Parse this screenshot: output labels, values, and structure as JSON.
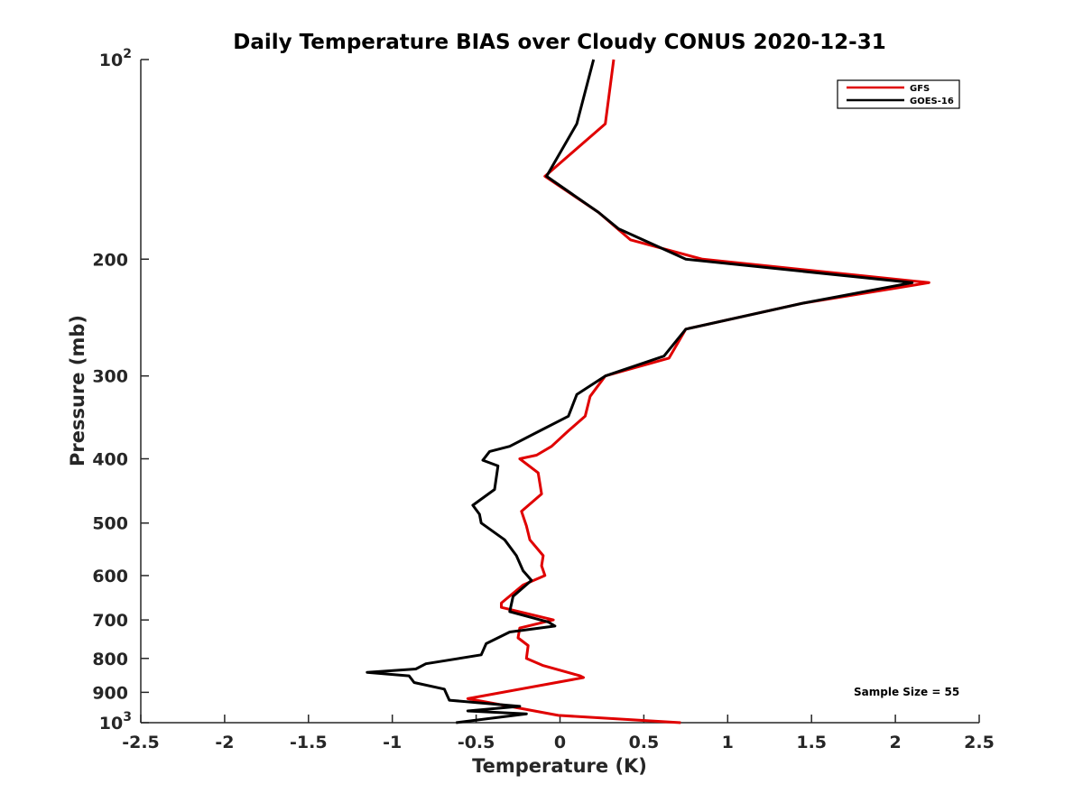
{
  "chart_data": {
    "type": "line",
    "title": "Daily Temperature BIAS over Cloudy CONUS 2020-12-31",
    "xlabel": "Temperature (K)",
    "ylabel": "Pressure (mb)",
    "xlim": [
      -2.5,
      2.5
    ],
    "ylim": [
      100,
      1000
    ],
    "y_scale": "log",
    "y_reversed": true,
    "grid": false,
    "x_ticks": [
      {
        "value": -2.5,
        "label": "-2.5"
      },
      {
        "value": -2,
        "label": "-2"
      },
      {
        "value": -1.5,
        "label": "-1.5"
      },
      {
        "value": -1,
        "label": "-1"
      },
      {
        "value": -0.5,
        "label": "-0.5"
      },
      {
        "value": 0,
        "label": "0"
      },
      {
        "value": 0.5,
        "label": "0.5"
      },
      {
        "value": 1,
        "label": "1"
      },
      {
        "value": 1.5,
        "label": "1.5"
      },
      {
        "value": 2,
        "label": "2"
      },
      {
        "value": 2.5,
        "label": "2.5"
      }
    ],
    "y_ticks": [
      {
        "value": 100,
        "base": "10",
        "exp": "2"
      },
      {
        "value": 200,
        "label": "200"
      },
      {
        "value": 300,
        "label": "300"
      },
      {
        "value": 400,
        "label": "400"
      },
      {
        "value": 500,
        "label": "500"
      },
      {
        "value": 600,
        "label": "600"
      },
      {
        "value": 700,
        "label": "700"
      },
      {
        "value": 800,
        "label": "800"
      },
      {
        "value": 900,
        "label": "900"
      },
      {
        "value": 1000,
        "base": "10",
        "exp": "3"
      }
    ],
    "legend_position": "top-right",
    "annotation": "Sample Size = 55",
    "series": [
      {
        "name": "GFS",
        "color": "#e00000",
        "x": [
          0.32,
          0.27,
          -0.09,
          0.23,
          0.42,
          0.85,
          2.2,
          1.45,
          0.75,
          0.65,
          0.27,
          0.18,
          0.15,
          0.05,
          -0.05,
          -0.14,
          -0.24,
          -0.13,
          -0.11,
          -0.23,
          -0.2,
          -0.18,
          -0.1,
          -0.11,
          -0.09,
          -0.22,
          -0.35,
          -0.35,
          -0.14,
          -0.04,
          -0.24,
          -0.25,
          -0.19,
          -0.2,
          -0.1,
          0.12,
          0.14,
          -0.55,
          -0.25,
          -0.01,
          0.72
        ],
        "y": [
          100,
          125,
          150,
          170,
          187,
          200,
          217,
          233,
          255,
          282,
          300,
          322,
          345,
          363,
          383,
          395,
          400,
          420,
          452,
          480,
          505,
          530,
          560,
          580,
          600,
          620,
          660,
          670,
          690,
          700,
          720,
          745,
          765,
          800,
          820,
          850,
          855,
          920,
          950,
          975,
          1000
        ]
      },
      {
        "name": "GOES-16",
        "color": "#000000",
        "x": [
          0.2,
          0.1,
          -0.08,
          0.23,
          0.35,
          0.75,
          2.1,
          1.45,
          0.75,
          0.62,
          0.27,
          0.1,
          0.05,
          -0.12,
          -0.3,
          -0.42,
          -0.46,
          -0.37,
          -0.39,
          -0.52,
          -0.48,
          -0.47,
          -0.33,
          -0.26,
          -0.22,
          -0.17,
          -0.28,
          -0.3,
          -0.07,
          -0.03,
          -0.3,
          -0.44,
          -0.47,
          -0.8,
          -0.86,
          -1.15,
          -0.9,
          -0.87,
          -0.69,
          -0.66,
          -0.24,
          -0.55,
          -0.2,
          -0.62
        ],
        "y": [
          100,
          125,
          150,
          170,
          180,
          200,
          217,
          233,
          255,
          280,
          300,
          320,
          345,
          363,
          383,
          390,
          402,
          410,
          445,
          470,
          485,
          500,
          530,
          560,
          590,
          610,
          645,
          680,
          705,
          715,
          730,
          760,
          790,
          815,
          830,
          840,
          850,
          870,
          890,
          925,
          945,
          960,
          970,
          1000
        ]
      }
    ]
  }
}
